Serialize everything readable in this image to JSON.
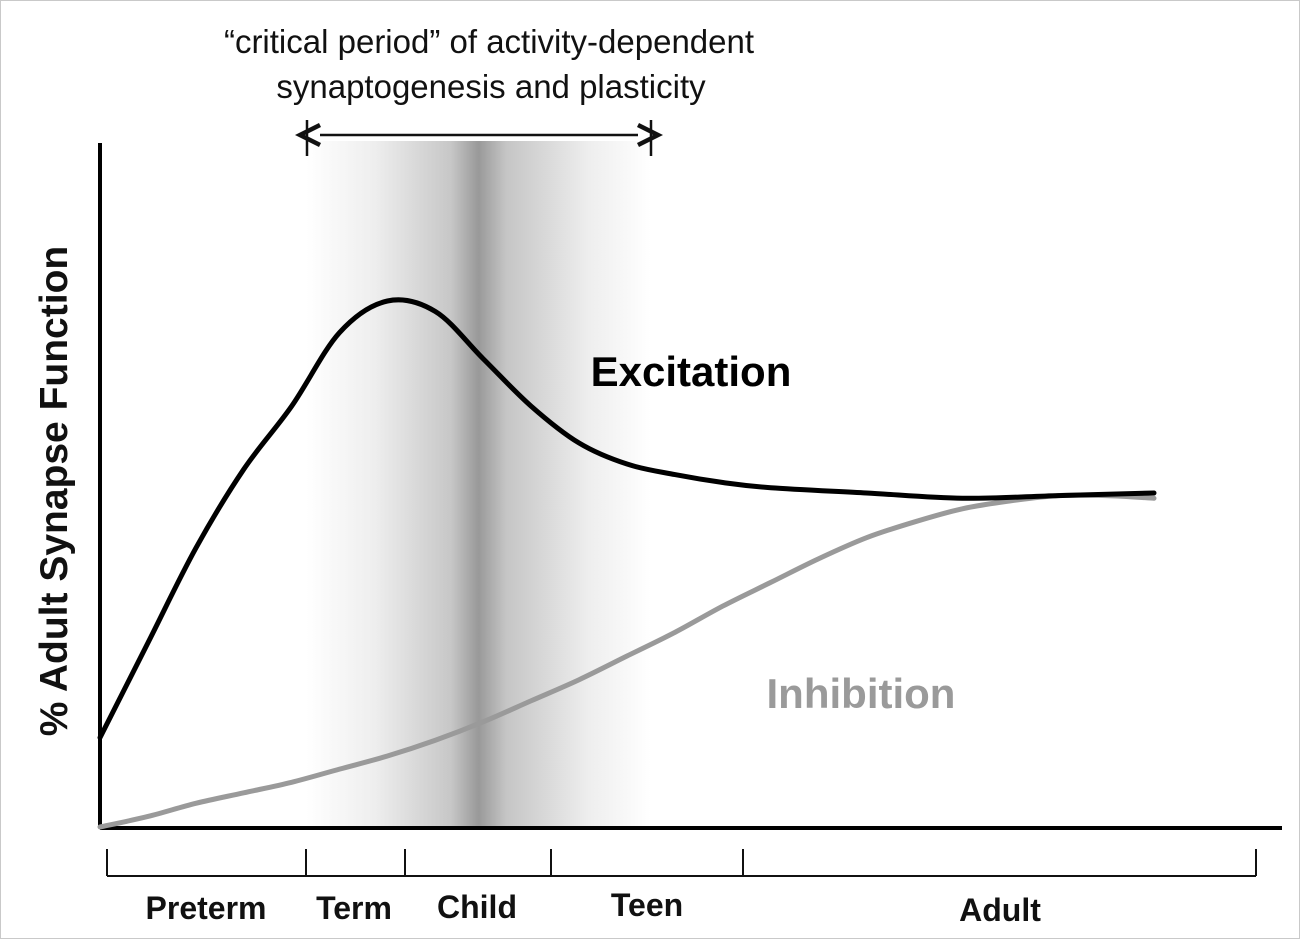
{
  "chart_data": {
    "type": "line",
    "title": "",
    "critical_period_label_line1": "“critical period” of activity-dependent",
    "critical_period_label_line2": "synaptogenesis and plasticity",
    "ylabel": "% Adult Synapse Function",
    "xlabel": "",
    "grid": false,
    "xlim": [
      0,
      120
    ],
    "ylim": [
      0,
      100
    ],
    "x_periods": [
      {
        "label": "Preterm",
        "start": 0,
        "end": 21
      },
      {
        "label": "Term",
        "start": 21,
        "end": 31
      },
      {
        "label": "Child",
        "start": 31,
        "end": 46
      },
      {
        "label": "Teen",
        "start": 46,
        "end": 66
      },
      {
        "label": "Adult",
        "start": 66,
        "end": 120
      }
    ],
    "critical_period": {
      "start": 21,
      "end": 56
    },
    "series": [
      {
        "name": "Excitation",
        "color": "#000000",
        "points": [
          [
            0,
            17
          ],
          [
            5,
            35
          ],
          [
            10,
            53
          ],
          [
            15,
            68
          ],
          [
            20,
            80
          ],
          [
            25,
            94
          ],
          [
            30,
            100
          ],
          [
            35,
            98
          ],
          [
            40,
            89
          ],
          [
            45,
            80
          ],
          [
            50,
            73
          ],
          [
            55,
            69
          ],
          [
            60,
            67
          ],
          [
            65,
            65.5
          ],
          [
            70,
            64.5
          ],
          [
            80,
            63.5
          ],
          [
            90,
            62.5
          ],
          [
            100,
            63
          ],
          [
            110,
            63.5
          ]
        ]
      },
      {
        "name": "Inhibition",
        "color": "#9a9a9a",
        "points": [
          [
            0,
            0
          ],
          [
            5,
            2
          ],
          [
            10,
            4.5
          ],
          [
            15,
            6.5
          ],
          [
            20,
            8.5
          ],
          [
            25,
            11
          ],
          [
            30,
            13.5
          ],
          [
            35,
            16.5
          ],
          [
            40,
            20
          ],
          [
            45,
            24
          ],
          [
            50,
            28
          ],
          [
            55,
            32.5
          ],
          [
            60,
            37
          ],
          [
            65,
            42
          ],
          [
            70,
            46.5
          ],
          [
            75,
            51
          ],
          [
            80,
            55
          ],
          [
            85,
            58
          ],
          [
            90,
            60.5
          ],
          [
            95,
            62
          ],
          [
            100,
            63
          ],
          [
            105,
            63
          ],
          [
            110,
            62.5
          ]
        ]
      }
    ]
  }
}
